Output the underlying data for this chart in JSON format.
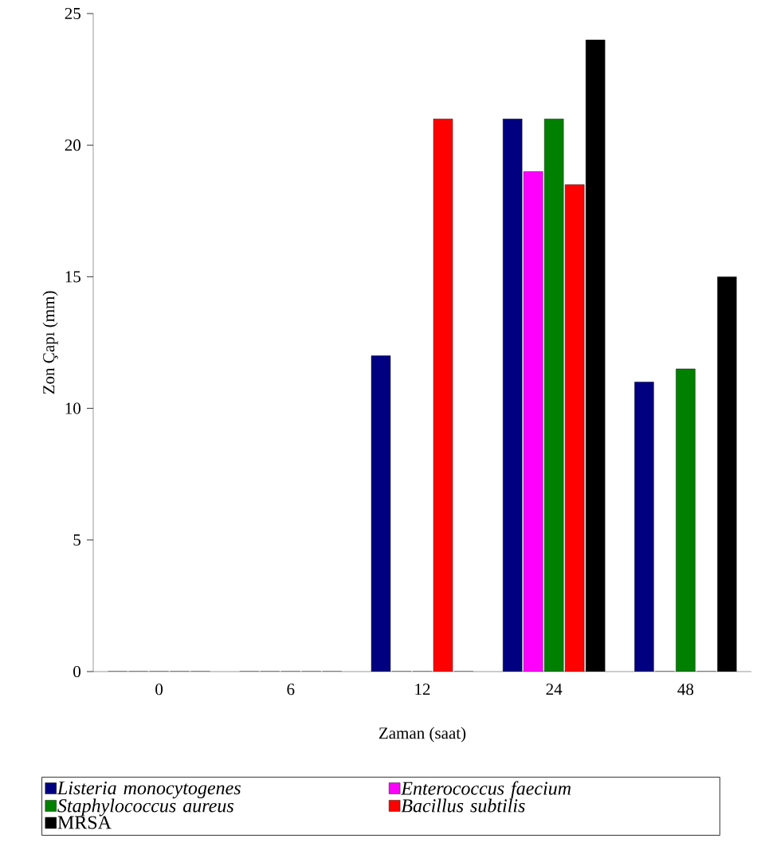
{
  "chart_data": {
    "type": "bar",
    "xlabel": "Zaman (saat)",
    "ylabel": "Zon Çapı (mm)",
    "categories": [
      "0",
      "6",
      "12",
      "24",
      "48"
    ],
    "series": [
      {
        "name": "*Listeria monocytogenes*",
        "color": "#000080",
        "values": [
          0,
          0,
          12,
          21,
          11
        ]
      },
      {
        "name": "*Enterococcus faecium*",
        "color": "#ff00ff",
        "values": [
          0,
          0,
          0,
          19,
          0
        ]
      },
      {
        "name": "*Staphylococcus aureus*",
        "color": "#008000",
        "values": [
          0,
          0,
          0,
          21,
          11.5
        ]
      },
      {
        "name": "*Bacillus subtilis*",
        "color": "#ff0000",
        "values": [
          0,
          0,
          21,
          18.5,
          0
        ]
      },
      {
        "name": "MRSA",
        "color": "#000000",
        "values": [
          0,
          0,
          0,
          24,
          15
        ]
      }
    ],
    "ylim": [
      0,
      25
    ],
    "yticks": [
      0,
      5,
      10,
      15,
      20,
      25
    ],
    "grid": false,
    "legend": "bottom"
  }
}
